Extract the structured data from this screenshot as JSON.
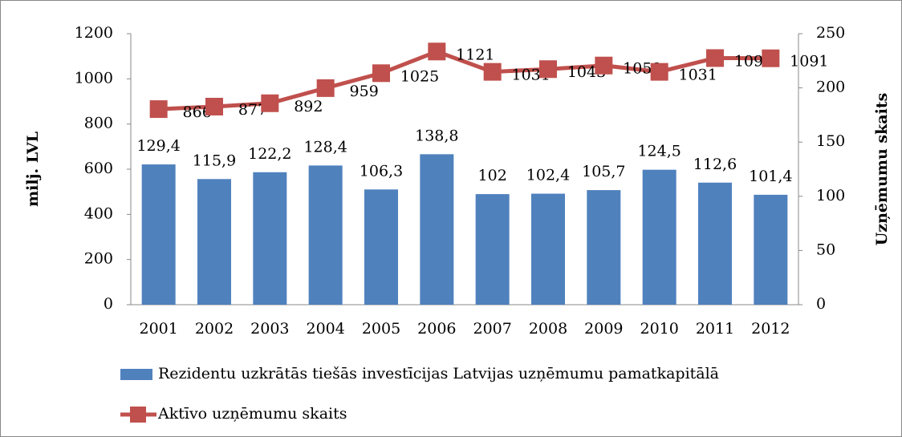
{
  "chart_data": {
    "type": "bar",
    "categories": [
      "2001",
      "2002",
      "2003",
      "2004",
      "2005",
      "2006",
      "2007",
      "2008",
      "2009",
      "2010",
      "2011",
      "2012"
    ],
    "series": [
      {
        "name": "Rezidentu uzkrātās tiešās investīcijas Latvijas uzņēmumu pamatkapitālā",
        "type": "bar",
        "axis": "y2",
        "color": "#4f81bd",
        "values": [
          129.4,
          115.9,
          122.2,
          128.4,
          106.3,
          138.8,
          102,
          102.4,
          105.7,
          124.5,
          112.6,
          101.4
        ],
        "value_labels": [
          "129,4",
          "115,9",
          "122,2",
          "128,4",
          "106,3",
          "138,8",
          "102",
          "102,4",
          "105,7",
          "124,5",
          "112,6",
          "101,4"
        ]
      },
      {
        "name": "Aktīvo uzņēmumu skaits",
        "type": "line",
        "color": "#c0504d",
        "values": [
          866,
          877,
          892,
          959,
          1025,
          1121,
          1031,
          1043,
          1059,
          1031,
          1092,
          1091
        ]
      }
    ],
    "ylabel": "milj. LVL",
    "y2label": "Uzņēmumu skaits",
    "ylim": [
      0,
      1200
    ],
    "yticks": [
      0,
      200,
      400,
      600,
      800,
      1000,
      1200
    ],
    "y2lim": [
      0,
      250
    ],
    "y2ticks": [
      0,
      50,
      100,
      150,
      200,
      250
    ],
    "legend": "bottom",
    "grid": false
  }
}
